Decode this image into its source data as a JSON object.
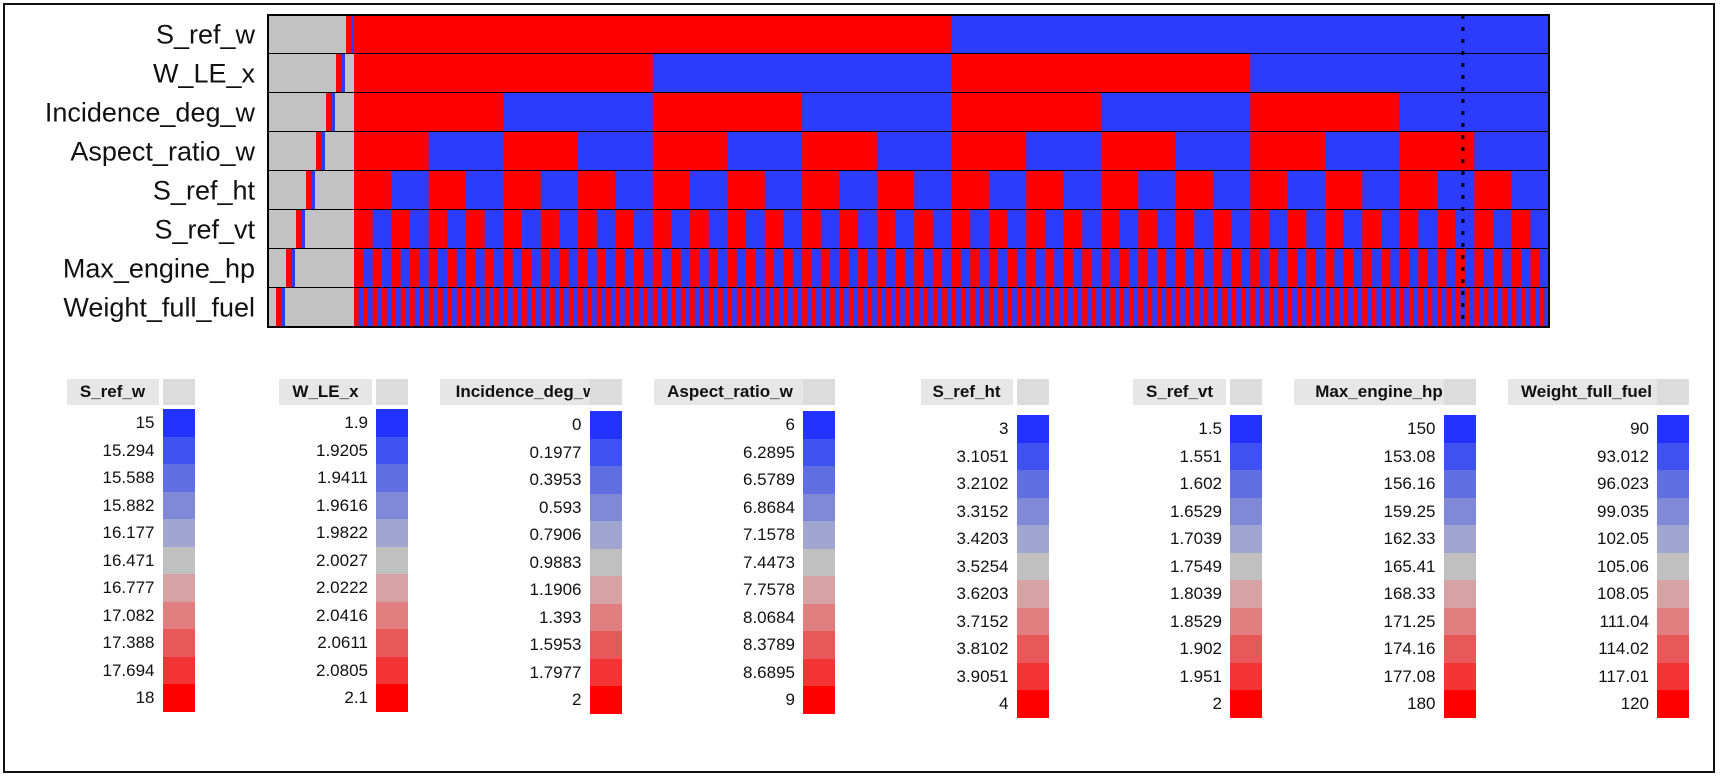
{
  "chart_data": [
    {
      "type": "heatmap",
      "title": "",
      "rows": [
        "S_ref_w",
        "W_LE_x",
        "Incidence_deg_w",
        "Aspect_ratio_w",
        "S_ref_ht",
        "S_ref_vt",
        "Max_engine_hp",
        "Weight_full_fuel"
      ],
      "segments_per_row": [
        2,
        4,
        8,
        16,
        32,
        64,
        128,
        256
      ],
      "pattern": "each row alternates red (high) then blue (low) levels, doubling frequency per row",
      "colors": {
        "high": "#ff0000",
        "low": "#2b3cff",
        "mid": "#c0c0c0",
        "border": "#000000"
      }
    },
    {
      "type": "table",
      "legends": [
        {
          "name": "S_ref_w",
          "values": [
            "15",
            "15.294",
            "15.588",
            "15.882",
            "16.177",
            "16.471",
            "16.777",
            "17.082",
            "17.388",
            "17.694",
            "18"
          ]
        },
        {
          "name": "W_LE_x",
          "values": [
            "1.9",
            "1.9205",
            "1.9411",
            "1.9616",
            "1.9822",
            "2.0027",
            "2.0222",
            "2.0416",
            "2.0611",
            "2.0805",
            "2.1"
          ]
        },
        {
          "name": "Incidence_deg_w",
          "values": [
            "0",
            "0.1977",
            "0.3953",
            "0.593",
            "0.7906",
            "0.9883",
            "1.1906",
            "1.393",
            "1.5953",
            "1.7977",
            "2"
          ]
        },
        {
          "name": "Aspect_ratio_w",
          "values": [
            "6",
            "6.2895",
            "6.5789",
            "6.8684",
            "7.1578",
            "7.4473",
            "7.7578",
            "8.0684",
            "8.3789",
            "8.6895",
            "9"
          ]
        },
        {
          "name": "S_ref_ht",
          "values": [
            "3",
            "3.1051",
            "3.2102",
            "3.3152",
            "3.4203",
            "3.5254",
            "3.6203",
            "3.7152",
            "3.8102",
            "3.9051",
            "4"
          ]
        },
        {
          "name": "S_ref_vt",
          "values": [
            "1.5",
            "1.551",
            "1.602",
            "1.6529",
            "1.7039",
            "1.7549",
            "1.8039",
            "1.8529",
            "1.902",
            "1.951",
            "2"
          ]
        },
        {
          "name": "Max_engine_hp",
          "values": [
            "150",
            "153.08",
            "156.16",
            "159.25",
            "162.33",
            "165.41",
            "168.33",
            "171.25",
            "174.16",
            "177.08",
            "180"
          ]
        },
        {
          "name": "Weight_full_fuel",
          "values": [
            "90",
            "93.012",
            "96.023",
            "99.035",
            "102.05",
            "105.06",
            "108.05",
            "111.04",
            "114.02",
            "117.01",
            "120"
          ]
        }
      ],
      "scale_colors": [
        "#2233ff",
        "#3f52f0",
        "#5f6fe2",
        "#8089d8",
        "#a0a6d0",
        "#c0c0c0",
        "#d6a2a4",
        "#e07e80",
        "#e85858",
        "#f23434",
        "#ff0000"
      ]
    }
  ]
}
